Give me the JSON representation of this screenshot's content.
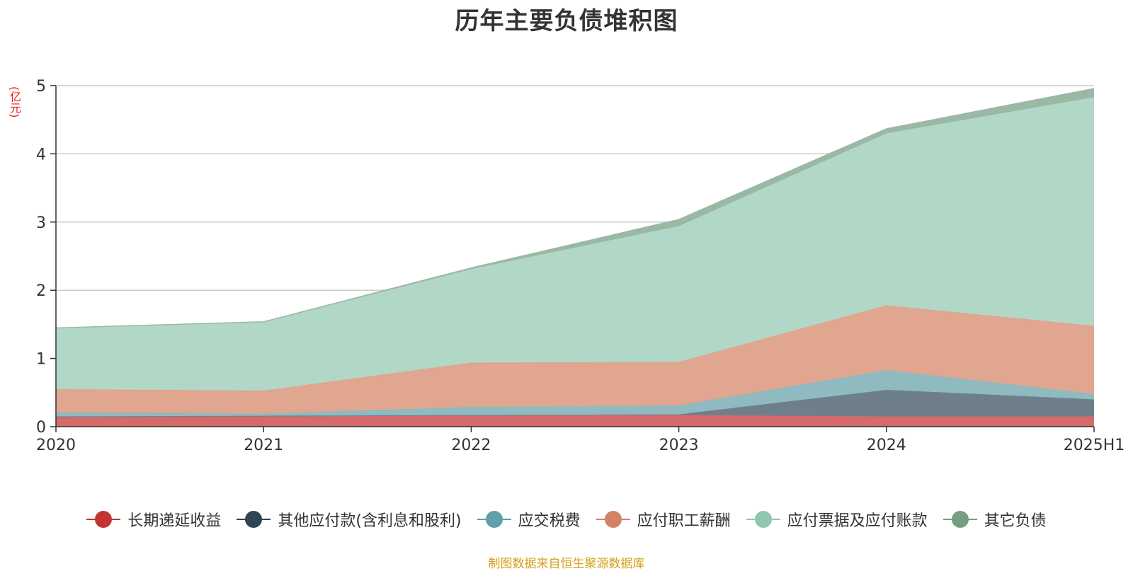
{
  "chart_data": {
    "type": "area",
    "stacked": true,
    "title": "历年主要负债堆积图",
    "ylabel": "(亿元)",
    "xlabel": "",
    "categories": [
      "2020",
      "2021",
      "2022",
      "2023",
      "2024",
      "2025H1"
    ],
    "ylim": [
      0,
      5
    ],
    "yticks": [
      0,
      1,
      2,
      3,
      4,
      5
    ],
    "grid": true,
    "legend_position": "bottom",
    "series": [
      {
        "name": "长期递延收益",
        "color": "#c23531",
        "fill": "#d46a6a",
        "values": [
          0.14,
          0.15,
          0.16,
          0.17,
          0.15,
          0.15
        ]
      },
      {
        "name": "其他应付款(含利息和股利)",
        "color": "#2f4554",
        "fill": "#6e7f8a",
        "values": [
          0.01,
          0.01,
          0.01,
          0.01,
          0.39,
          0.25
        ]
      },
      {
        "name": "应交税费",
        "color": "#61a0a8",
        "fill": "#8fbac0",
        "values": [
          0.06,
          0.03,
          0.12,
          0.13,
          0.29,
          0.08
        ]
      },
      {
        "name": "应付职工薪酬",
        "color": "#d48265",
        "fill": "#e0a690",
        "values": [
          0.34,
          0.34,
          0.65,
          0.64,
          0.95,
          1.0
        ]
      },
      {
        "name": "应付票据及应付账款",
        "color": "#91c7ae",
        "fill": "#b1d8c6",
        "values": [
          0.89,
          1.0,
          1.37,
          1.99,
          2.52,
          3.35
        ]
      },
      {
        "name": "其它负债",
        "color": "#749f83",
        "fill": "#9bb8a4",
        "values": [
          0.01,
          0.01,
          0.02,
          0.1,
          0.07,
          0.13
        ]
      }
    ]
  },
  "source_note": "制图数据来自恒生聚源数据库"
}
